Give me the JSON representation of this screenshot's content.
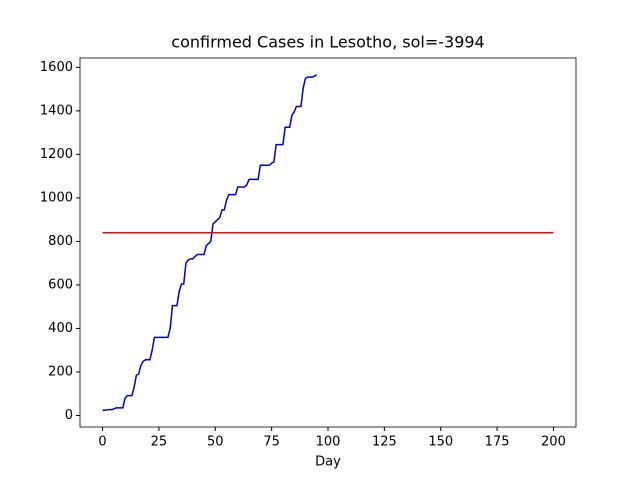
{
  "chart_data": {
    "type": "line",
    "title": "confirmed Cases in Lesotho, sol=-3994",
    "xlabel": "Day",
    "series": [
      {
        "color": "#0000cc",
        "x": [
          0,
          1,
          2,
          3,
          4,
          5,
          6,
          7,
          8,
          9,
          10,
          11,
          12,
          13,
          14,
          15,
          16,
          17,
          18,
          19,
          20,
          21,
          22,
          23,
          24,
          25,
          26,
          27,
          28,
          29,
          30,
          31,
          32,
          33,
          34,
          35,
          36,
          37,
          38,
          39,
          40,
          41,
          42,
          43,
          44,
          45,
          46,
          47,
          48,
          49,
          50,
          51,
          52,
          53,
          54,
          55,
          56,
          57,
          58,
          59,
          60,
          61,
          62,
          63,
          64,
          65,
          66,
          67,
          68,
          69,
          70,
          71,
          72,
          73,
          74,
          75,
          76,
          77,
          78,
          79,
          80,
          81,
          82,
          83,
          84,
          85,
          86,
          87,
          88,
          89,
          90,
          91,
          92,
          93,
          94,
          95
        ],
        "values": [
          24,
          24,
          26,
          27,
          27,
          30,
          35,
          35,
          35,
          35,
          80,
          91,
          91,
          91,
          130,
          185,
          190,
          230,
          248,
          256,
          256,
          256,
          300,
          359,
          359,
          359,
          359,
          359,
          359,
          359,
          400,
          505,
          505,
          505,
          570,
          604,
          604,
          700,
          715,
          720,
          720,
          730,
          740,
          740,
          740,
          740,
          780,
          790,
          800,
          880,
          890,
          900,
          910,
          945,
          945,
          990,
          1015,
          1015,
          1015,
          1015,
          1050,
          1050,
          1050,
          1050,
          1060,
          1085,
          1085,
          1085,
          1085,
          1085,
          1150,
          1150,
          1150,
          1150,
          1150,
          1160,
          1165,
          1245,
          1245,
          1245,
          1245,
          1325,
          1325,
          1325,
          1380,
          1395,
          1420,
          1420,
          1420,
          1505,
          1550,
          1555,
          1555,
          1555,
          1560,
          1566
        ]
      },
      {
        "color": "#ff0000",
        "x": [
          0,
          200
        ],
        "values": [
          840,
          840
        ]
      }
    ],
    "xlim": [
      -10,
      210
    ],
    "xticks": [
      0,
      25,
      50,
      75,
      100,
      125,
      150,
      175,
      200
    ],
    "ylim": [
      -53,
      1643
    ],
    "yticks": [
      0,
      200,
      400,
      600,
      800,
      1000,
      1200,
      1400,
      1600
    ],
    "grid": false
  }
}
